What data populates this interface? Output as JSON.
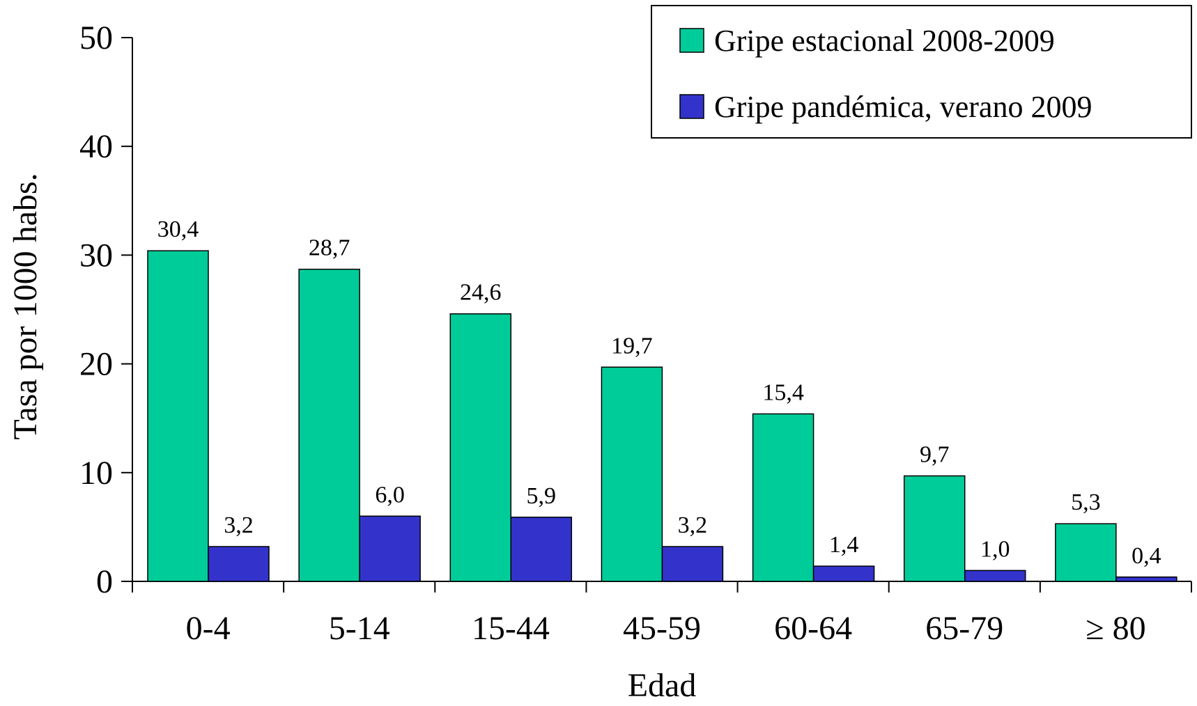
{
  "chart_data": {
    "type": "bar",
    "title": "",
    "xlabel": "Edad",
    "ylabel": "Tasa por 1000 habs.",
    "ylim": [
      0,
      50
    ],
    "yticks": [
      "0",
      "10",
      "20",
      "30",
      "40",
      "50"
    ],
    "categories": [
      "0-4",
      "5-14",
      "15-44",
      "45-59",
      "60-64",
      "65-79",
      "≥ 80"
    ],
    "grid": false,
    "legend_position": "top-right",
    "series": [
      {
        "name": "Gripe estacional 2008-2009",
        "color": "#00CC99",
        "values": [
          30.4,
          28.7,
          24.6,
          19.7,
          15.4,
          9.7,
          5.3
        ],
        "labels": [
          "30,4",
          "28,7",
          "24,6",
          "19,7",
          "15,4",
          "9,7",
          "5,3"
        ]
      },
      {
        "name": "Gripe pandémica, verano 2009",
        "color": "#3333CC",
        "values": [
          3.2,
          6.0,
          5.9,
          3.2,
          1.4,
          1.0,
          0.4
        ],
        "labels": [
          "3,2",
          "6,0",
          "5,9",
          "3,2",
          "1,4",
          "1,0",
          "0,4"
        ]
      }
    ]
  }
}
